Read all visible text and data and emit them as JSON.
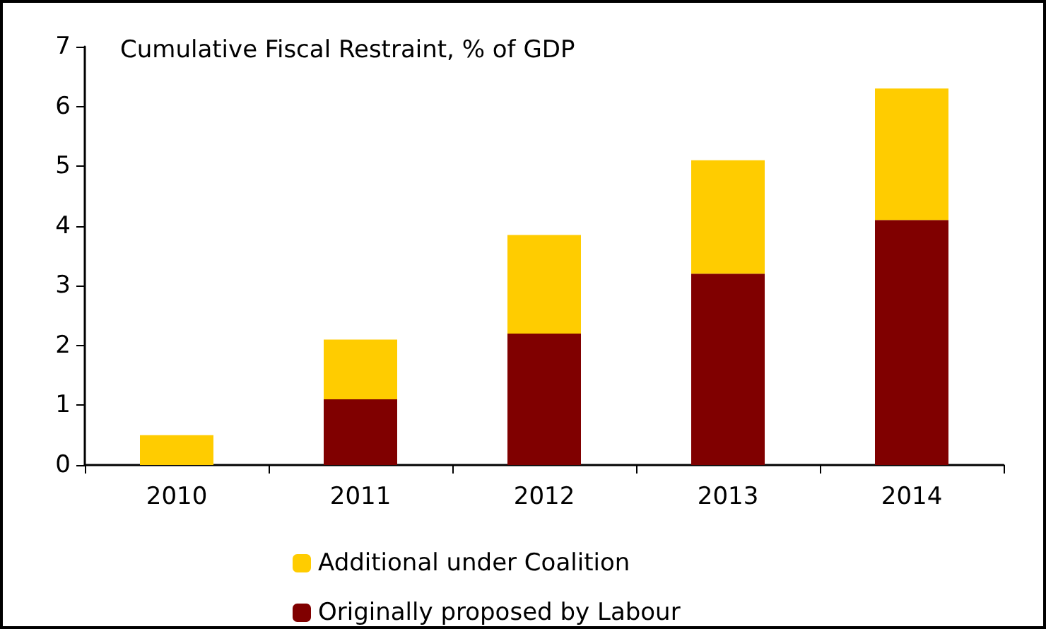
{
  "chart_data": {
    "type": "bar",
    "title": "Cumulative Fiscal Restraint, % of GDP",
    "categories": [
      "2010",
      "2011",
      "2012",
      "2013",
      "2014"
    ],
    "stacked": true,
    "series": [
      {
        "name": "Originally proposed by Labour",
        "color": "#800000",
        "values": [
          0,
          1.1,
          2.2,
          3.2,
          4.1
        ]
      },
      {
        "name": "Additional under Coalition",
        "color": "#ffcc00",
        "values": [
          0.5,
          1.0,
          1.65,
          1.9,
          2.2
        ]
      }
    ],
    "ylim": [
      0,
      7
    ],
    "yticks": [
      0,
      1,
      2,
      3,
      4,
      5,
      6,
      7
    ],
    "grid": false,
    "legend": "bottom"
  }
}
